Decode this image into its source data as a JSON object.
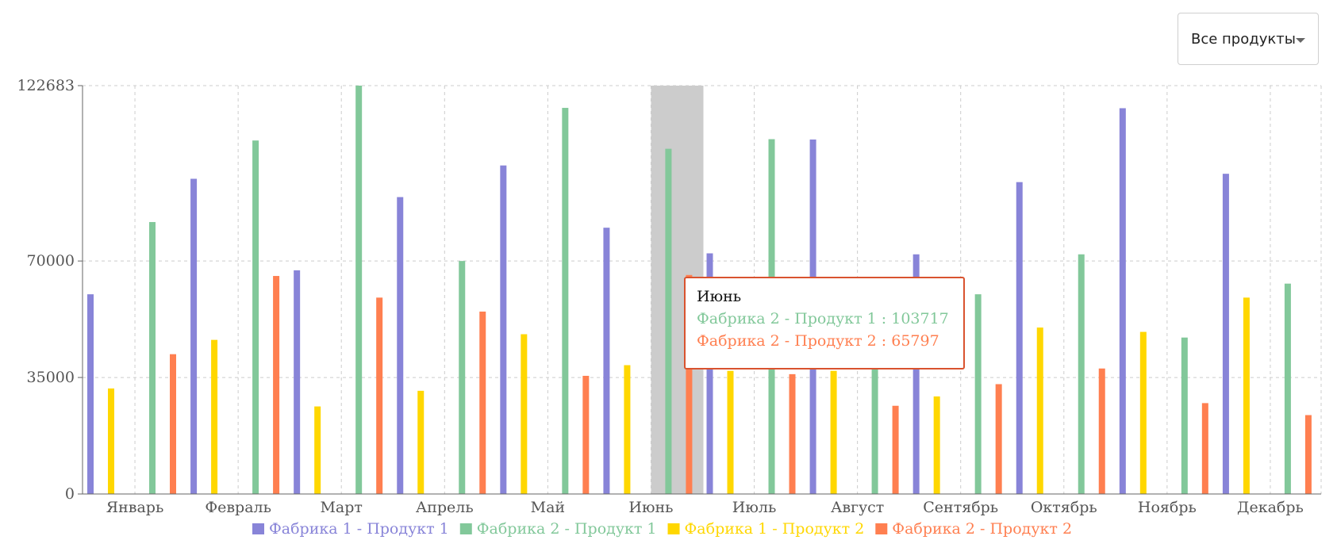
{
  "product_selector": {
    "label": "Все продукты"
  },
  "tooltip": {
    "title": "Июнь",
    "rows": [
      {
        "text": "Фабрика 2 - Продукт 1 : 103717",
        "color": "#82c89a"
      },
      {
        "text": "Фабрика 2 - Продукт 2 : 65797",
        "color": "#ff7f50"
      }
    ]
  },
  "chart_data": {
    "type": "bar",
    "categories": [
      "Январь",
      "Февраль",
      "Март",
      "Апрель",
      "Май",
      "Июнь",
      "Июль",
      "Август",
      "Сентябрь",
      "Октябрь",
      "Ноябрь",
      "Декабрь"
    ],
    "series": [
      {
        "name": "Фабрика 1 - Продукт 1",
        "color": "#8884d8",
        "values": [
          60000,
          94700,
          67200,
          89200,
          98700,
          80000,
          72300,
          106500,
          72000,
          93700,
          115900,
          96200
        ]
      },
      {
        "name": "Фабрика 2 - Продукт 1",
        "color": "#82c89a",
        "values": [
          81700,
          106200,
          122683,
          70000,
          116000,
          103717,
          106600,
          65000,
          60000,
          72000,
          47000,
          63200
        ]
      },
      {
        "name": "Фабрика 1 - Продукт 2",
        "color": "#ffd700",
        "values": [
          31700,
          46300,
          26300,
          31000,
          48000,
          38700,
          37000,
          37000,
          29300,
          50000,
          48700,
          59000
        ]
      },
      {
        "name": "Фабрика 2 - Продукт 2",
        "color": "#ff7f50",
        "values": [
          42000,
          65500,
          59000,
          54800,
          35500,
          65797,
          36000,
          26500,
          33000,
          37700,
          27300,
          23700
        ]
      }
    ],
    "y_ticks": [
      0,
      35000,
      70000,
      122683
    ],
    "ylim": [
      0,
      122683
    ],
    "grid": true,
    "legend_position": "bottom",
    "highlighted_category": "Июнь"
  }
}
